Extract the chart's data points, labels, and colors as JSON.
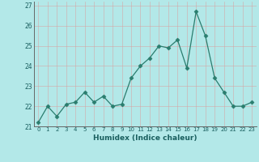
{
  "x": [
    0,
    1,
    2,
    3,
    4,
    5,
    6,
    7,
    8,
    9,
    10,
    11,
    12,
    13,
    14,
    15,
    16,
    17,
    18,
    19,
    20,
    21,
    22,
    23
  ],
  "y": [
    21.2,
    22.0,
    21.5,
    22.1,
    22.2,
    22.7,
    22.2,
    22.5,
    22.0,
    22.1,
    23.4,
    24.0,
    24.4,
    25.0,
    24.9,
    25.3,
    23.9,
    26.7,
    25.5,
    23.4,
    22.7,
    22.0,
    22.0,
    22.2
  ],
  "line_color": "#2a7d6e",
  "marker": "D",
  "marker_size": 2.5,
  "bg_color": "#b3e8e8",
  "grid_color": "#e0f5f5",
  "xlabel": "Humidex (Indice chaleur)",
  "ylim": [
    21.0,
    27.2
  ],
  "xlim": [
    -0.5,
    23.5
  ],
  "yticks": [
    21,
    22,
    23,
    24,
    25,
    26,
    27
  ],
  "xticks": [
    0,
    1,
    2,
    3,
    4,
    5,
    6,
    7,
    8,
    9,
    10,
    11,
    12,
    13,
    14,
    15,
    16,
    17,
    18,
    19,
    20,
    21,
    22,
    23
  ]
}
